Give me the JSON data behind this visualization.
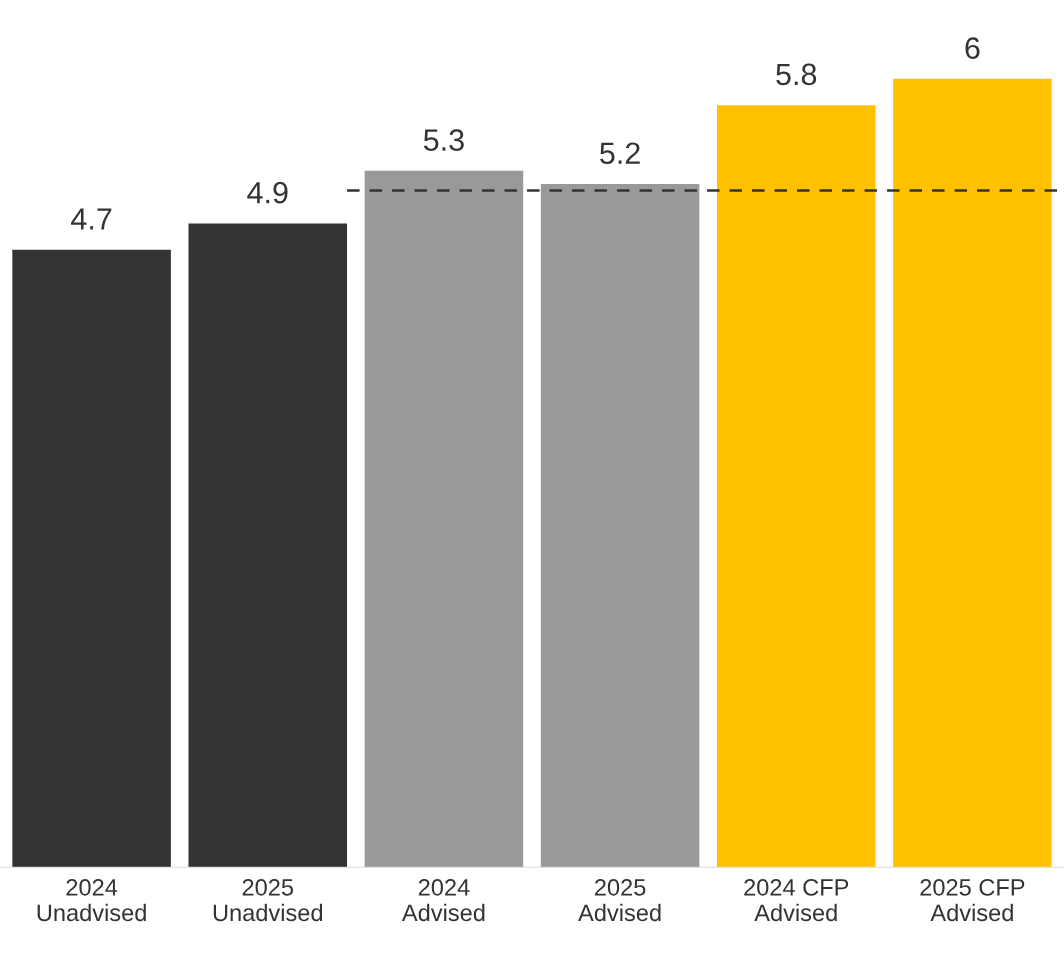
{
  "chart_data": {
    "type": "bar",
    "categories": [
      "2024\nUnadvised",
      "2025\nUnadvised",
      "2024\nAdvised",
      "2025\nAdvised",
      "2024 CFP\nAdvised",
      "2025 CFP\nAdvised"
    ],
    "values": [
      4.7,
      4.9,
      5.3,
      5.2,
      5.8,
      6
    ],
    "colors": [
      "#333333",
      "#333333",
      "#999999",
      "#999999",
      "#ffc000",
      "#ffc000"
    ],
    "data_labels": true,
    "ref_lines": [
      {
        "axis": "y",
        "value": 5.15,
        "color": "#333333",
        "line_style": "dashed"
      }
    ],
    "grid": false,
    "legend": false
  }
}
